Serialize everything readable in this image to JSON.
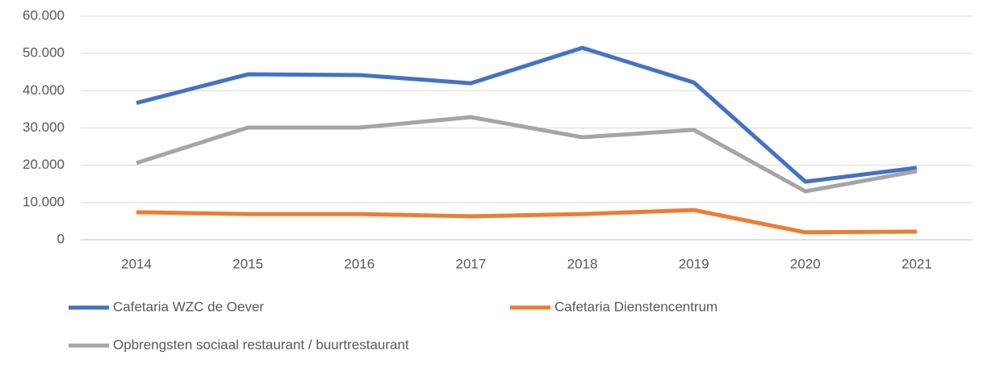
{
  "chart_data": {
    "type": "line",
    "categories": [
      "2014",
      "2015",
      "2016",
      "2017",
      "2018",
      "2019",
      "2020",
      "2021"
    ],
    "series": [
      {
        "name": "Cafetaria WZC de Oever",
        "color": "#4472c4",
        "values": [
          36700,
          44400,
          44200,
          42000,
          51500,
          42200,
          15600,
          19300
        ]
      },
      {
        "name": "Cafetaria Dienstencentrum",
        "color": "#ed7d31",
        "values": [
          7400,
          6900,
          6900,
          6300,
          6900,
          8000,
          2000,
          2200
        ]
      },
      {
        "name": "Opbrengsten sociaal restaurant / buurtrestaurant",
        "color": "#a5a5a5",
        "values": [
          20600,
          30100,
          30100,
          32900,
          27500,
          29500,
          13000,
          18400
        ]
      }
    ],
    "ylim": [
      0,
      60000
    ],
    "yticks": [
      0,
      {
        "value": 10000,
        "label": "10.000"
      },
      {
        "value": 20000,
        "label": "20.000"
      },
      {
        "value": 30000,
        "label": "30.000"
      },
      {
        "value": 40000,
        "label": "40.000"
      },
      {
        "value": 50000,
        "label": "50.000"
      },
      {
        "value": 60000,
        "label": "60.000"
      }
    ],
    "grid": true,
    "legend": "bottom"
  }
}
